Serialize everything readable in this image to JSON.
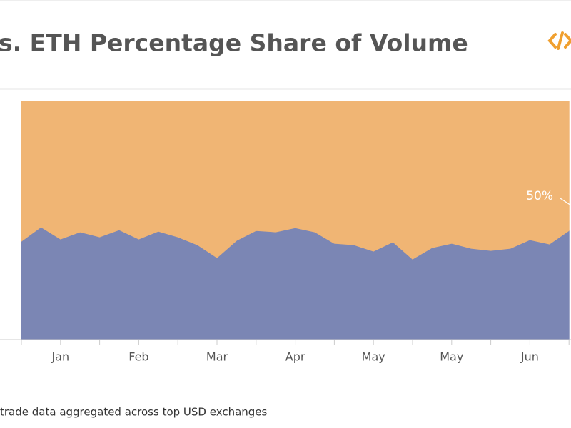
{
  "chart_data": {
    "type": "stacked_area",
    "title": "s. ETH Percentage Share of Volume",
    "footer": "trade data aggregated across top USD exchanges",
    "annotation": "50%",
    "categories": [
      null,
      null,
      "Jan",
      null,
      null,
      null,
      "Feb",
      null,
      null,
      null,
      "Mar",
      null,
      null,
      null,
      "Apr",
      null,
      null,
      null,
      "May",
      null,
      null,
      null,
      "May",
      null,
      null,
      null,
      "Jun",
      null,
      null
    ],
    "series": [
      {
        "color": "#7b86b4",
        "values": [
          41.1,
          47.1,
          42.0,
          45.0,
          42.9,
          45.9,
          42.0,
          45.3,
          42.9,
          39.6,
          34.2,
          41.4,
          45.6,
          45.0,
          46.8,
          45.0,
          40.2,
          39.6,
          36.9,
          40.8,
          33.6,
          38.4,
          40.2,
          38.1,
          37.2,
          38.1,
          41.7,
          39.9,
          45.6
        ]
      },
      {
        "color": "#f0b574",
        "values": [
          58.9,
          52.9,
          58.0,
          55.0,
          57.1,
          54.1,
          58.0,
          54.7,
          57.1,
          60.4,
          65.8,
          58.6,
          54.4,
          55.0,
          53.2,
          55.0,
          59.8,
          60.4,
          63.1,
          59.2,
          66.4,
          61.6,
          59.8,
          61.9,
          62.8,
          61.9,
          58.3,
          60.1,
          54.4
        ]
      }
    ],
    "ylim": [
      0,
      100
    ]
  }
}
